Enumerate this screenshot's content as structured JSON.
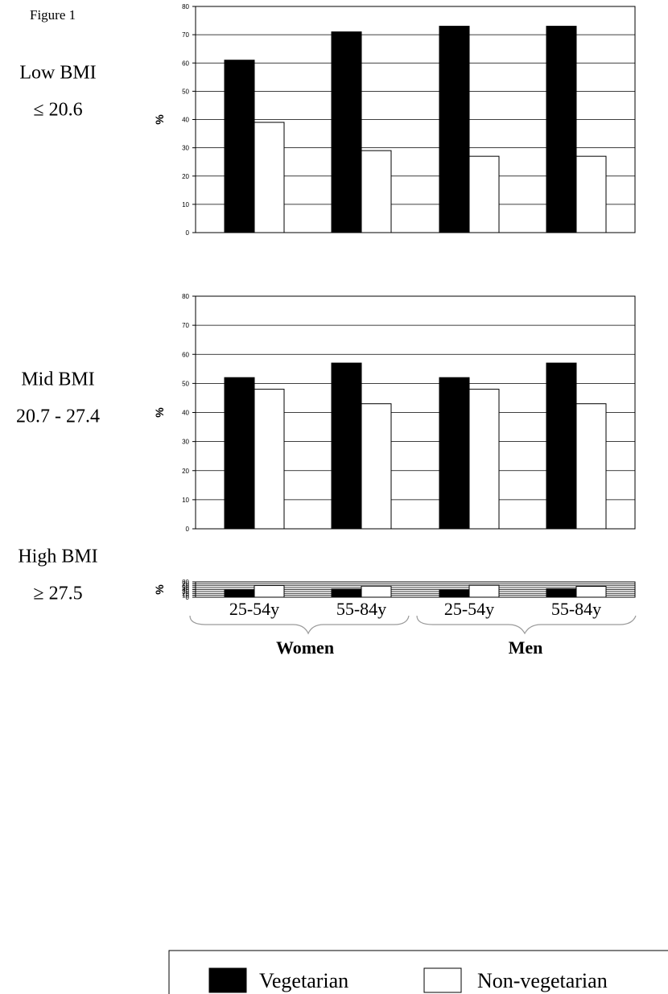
{
  "figure_label": "Figure 1",
  "colors": {
    "vegetarian": "#000000",
    "non_vegetarian": "#ffffff",
    "grid": "#000000"
  },
  "chart_data": [
    {
      "type": "bar",
      "row_label": [
        "Low BMI",
        "≤ 20.6"
      ],
      "ylabel": "%",
      "ylim": [
        0,
        80
      ],
      "yticks": [
        0,
        10,
        20,
        30,
        40,
        50,
        60,
        70,
        80
      ],
      "grid": true,
      "categories": [
        "25-54y",
        "55-84y",
        "25-54y",
        "55-84y"
      ],
      "series": [
        {
          "name": "Vegetarian",
          "values": [
            61,
            71,
            73,
            73
          ]
        },
        {
          "name": "Non-vegetarian",
          "values": [
            39,
            29,
            27,
            27
          ]
        }
      ]
    },
    {
      "type": "bar",
      "row_label": [
        "Mid BMI",
        "20.7 - 27.4"
      ],
      "ylabel": "%",
      "ylim": [
        0,
        80
      ],
      "yticks": [
        0,
        10,
        20,
        30,
        40,
        50,
        60,
        70,
        80
      ],
      "grid": true,
      "categories": [
        "25-54y",
        "55-84y",
        "25-54y",
        "55-84y"
      ],
      "series": [
        {
          "name": "Vegetarian",
          "values": [
            52,
            57,
            52,
            57
          ]
        },
        {
          "name": "Non-vegetarian",
          "values": [
            48,
            43,
            48,
            43
          ]
        }
      ]
    },
    {
      "type": "bar",
      "row_label": [
        "High BMI",
        "≥ 27.5"
      ],
      "ylabel": "%",
      "ylim": [
        0,
        80
      ],
      "yticks": [
        0,
        10,
        20,
        30,
        40,
        50,
        60,
        70,
        80
      ],
      "grid": true,
      "categories": [
        "25-54y",
        "55-84y",
        "25-54y",
        "55-84y"
      ],
      "series": [
        {
          "name": "Vegetarian",
          "values": [
            39,
            42,
            38,
            43
          ]
        },
        {
          "name": "Non-vegetarian",
          "values": [
            61,
            58,
            62,
            57
          ]
        }
      ]
    }
  ],
  "x_axis": {
    "age_labels": [
      "25-54y",
      "55-84y",
      "25-54y",
      "55-84y"
    ],
    "groups": [
      "Women",
      "Men"
    ]
  },
  "legend": {
    "placement": "bottom",
    "items": [
      "Vegetarian",
      "Non-vegetarian"
    ]
  }
}
